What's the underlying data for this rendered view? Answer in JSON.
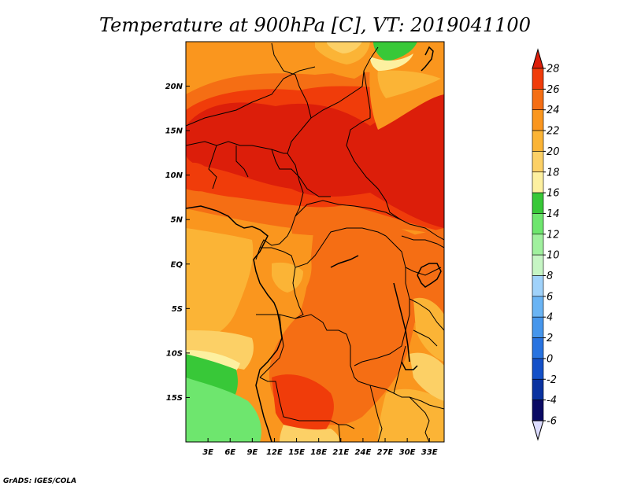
{
  "title": "Temperature at 900hPa [C], VT: 2019041100",
  "credit": "GrADS: IGES/COLA",
  "map": {
    "lon_range": [
      0,
      35
    ],
    "lat_range": [
      -20,
      25
    ],
    "x_ticks": [
      "3E",
      "6E",
      "9E",
      "12E",
      "15E",
      "18E",
      "21E",
      "24E",
      "27E",
      "30E",
      "33E"
    ],
    "x_tick_values": [
      3,
      6,
      9,
      12,
      15,
      18,
      21,
      24,
      27,
      30,
      33
    ],
    "y_ticks": [
      "20N",
      "15N",
      "10N",
      "5N",
      "EQ",
      "5S",
      "10S",
      "15S"
    ],
    "y_tick_values": [
      20,
      15,
      10,
      5,
      0,
      -5,
      -10,
      -15
    ]
  },
  "colorbar": {
    "levels": [
      "28",
      "26",
      "24",
      "22",
      "20",
      "18",
      "16",
      "14",
      "12",
      "10",
      "8",
      "6",
      "4",
      "2",
      "0",
      "-2",
      "-4",
      "-6"
    ],
    "colors": [
      "#dc1e0a",
      "#f03c0a",
      "#f56e14",
      "#fa961e",
      "#fbb436",
      "#fcd066",
      "#fdf0a0",
      "#38c838",
      "#6ee66e",
      "#a0f09e",
      "#c6f5c4",
      "#a0d2fa",
      "#6ab4f4",
      "#4696ec",
      "#2873e0",
      "#1450c8",
      "#0a32a0",
      "#0a0a64"
    ],
    "above_color": "#dc1e0a",
    "below_color": "#dcdcff"
  }
}
